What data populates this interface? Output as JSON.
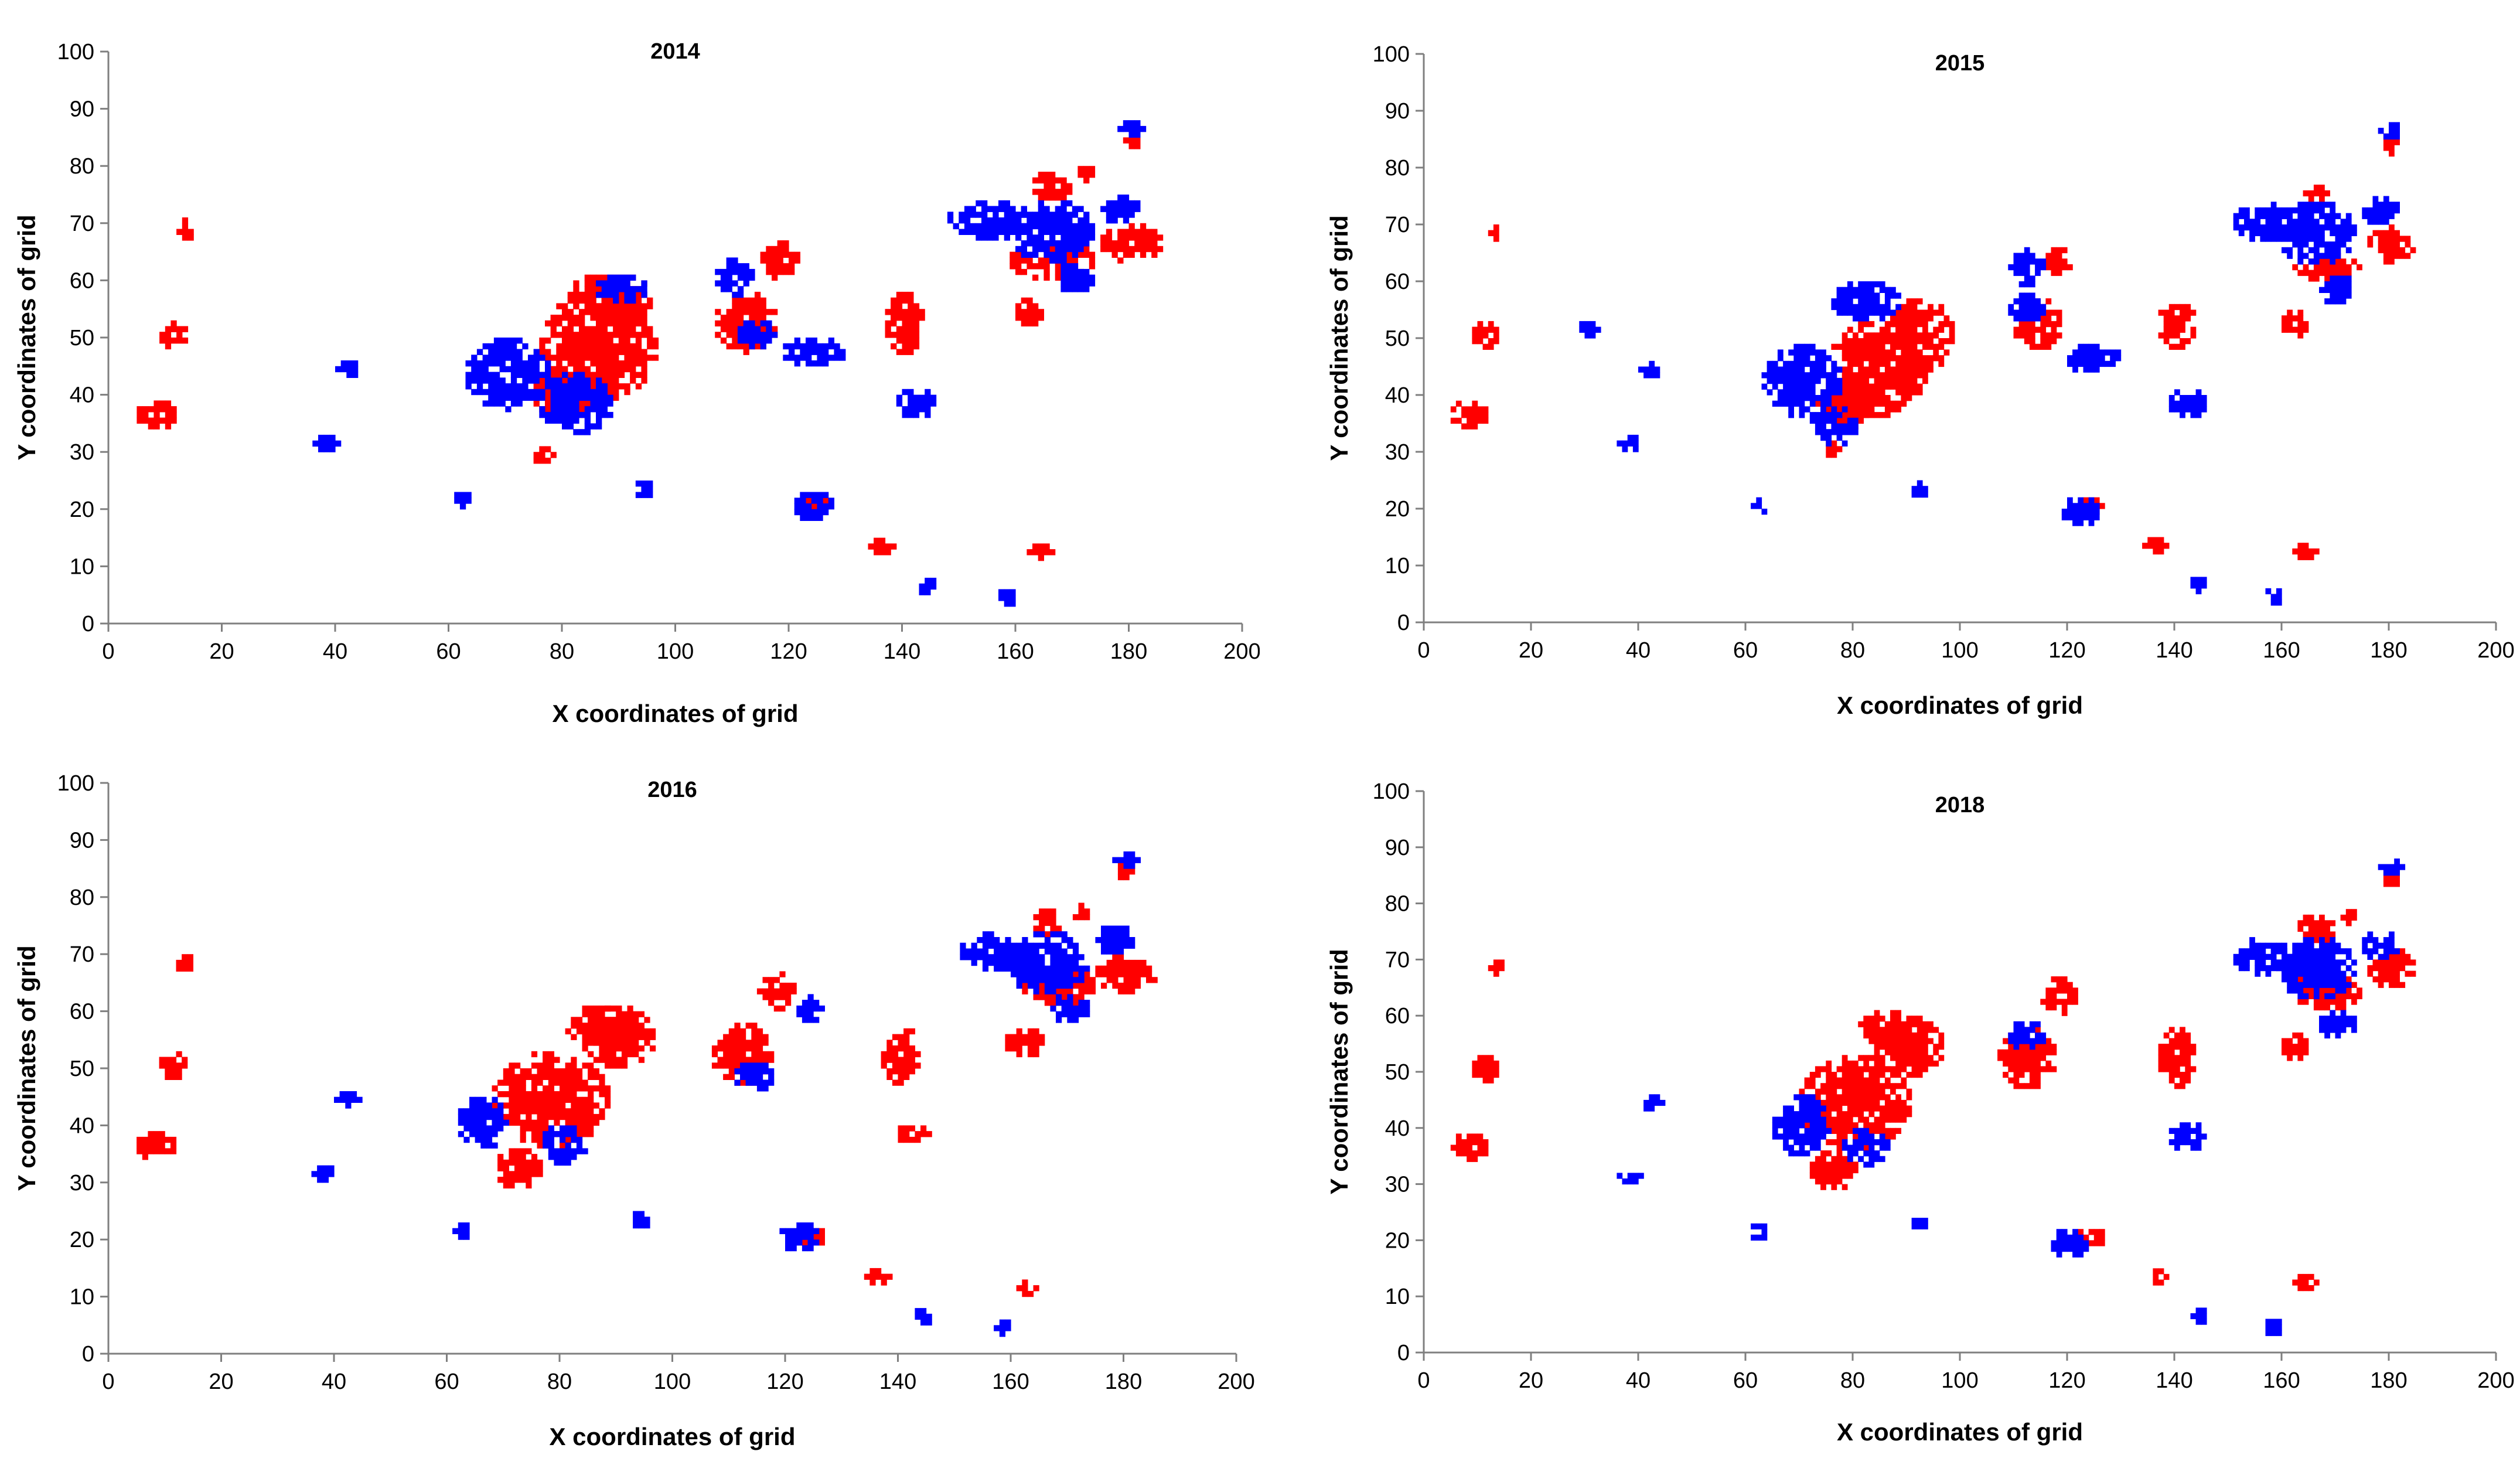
{
  "colors": {
    "red": "#ff0000",
    "blue": "#0000ff",
    "axis": "#7f7f7f"
  },
  "chart_data": [
    {
      "type": "scatter",
      "title": "2014",
      "xlabel": "X coordinates of grid",
      "ylabel": "Y coordinates of grid",
      "xlim": [
        0,
        200
      ],
      "ylim": [
        0,
        100
      ],
      "xticks": [
        0,
        20,
        40,
        60,
        80,
        100,
        120,
        140,
        160,
        180,
        200
      ],
      "yticks": [
        0,
        10,
        20,
        30,
        40,
        50,
        60,
        70,
        80,
        90,
        100
      ],
      "series": [
        {
          "name": "red",
          "clusters": [
            [
              86,
              48,
              10,
              9
            ],
            [
              80,
              40,
              5,
              5
            ],
            [
              90,
              56,
              5,
              4
            ],
            [
              8,
              36,
              3,
              2
            ],
            [
              13,
              68,
              1,
              2
            ],
            [
              11,
              50,
              2,
              2
            ],
            [
              112,
              52,
              5,
              5
            ],
            [
              118,
              63,
              3,
              3
            ],
            [
              140,
              52,
              3,
              5
            ],
            [
              162,
              54,
              2,
              2
            ],
            [
              166,
              63,
              7,
              3
            ],
            [
              180,
              66,
              5,
              3
            ],
            [
              180,
              84,
              1,
              2
            ],
            [
              86,
              57,
              5,
              3
            ],
            [
              76,
              29,
              2,
              1
            ],
            [
              124,
              21,
              2,
              1
            ],
            [
              136,
              13,
              2,
              1
            ],
            [
              164,
              12,
              2,
              1
            ],
            [
              166,
              76,
              3,
              2
            ],
            [
              172,
              78,
              1,
              1
            ]
          ]
        },
        {
          "name": "blue",
          "clusters": [
            [
              70,
              43,
              7,
              6
            ],
            [
              82,
              38,
              6,
              5
            ],
            [
              90,
              58,
              4,
              2
            ],
            [
              110,
              60,
              3,
              3
            ],
            [
              124,
              47,
              5,
              2
            ],
            [
              142,
              38,
              3,
              2
            ],
            [
              155,
              70,
              7,
              3
            ],
            [
              166,
              68,
              7,
              5
            ],
            [
              178,
              72,
              3,
              2
            ],
            [
              180,
              86,
              2,
              1
            ],
            [
              124,
              20,
              3,
              2
            ],
            [
              62,
              21,
              1,
              1
            ],
            [
              94,
              23,
              1,
              1
            ],
            [
              42,
              44,
              2,
              1
            ],
            [
              38,
              31,
              2,
              1
            ],
            [
              170,
              60,
              3,
              2
            ],
            [
              144,
              6,
              1,
              1
            ],
            [
              158,
              4,
              1,
              1
            ],
            [
              114,
              50,
              3,
              2
            ]
          ]
        }
      ]
    },
    {
      "type": "scatter",
      "title": "2015",
      "xlabel": "X coordinates of grid",
      "ylabel": "Y coordinates of grid",
      "xlim": [
        0,
        200
      ],
      "ylim": [
        0,
        100
      ],
      "xticks": [
        0,
        20,
        40,
        60,
        80,
        100,
        120,
        140,
        160,
        180,
        200
      ],
      "yticks": [
        0,
        10,
        20,
        30,
        40,
        50,
        60,
        70,
        80,
        90,
        100
      ],
      "series": [
        {
          "name": "red",
          "clusters": [
            [
              84,
              44,
              9,
              8
            ],
            [
              92,
              50,
              6,
              6
            ],
            [
              78,
              38,
              5,
              4
            ],
            [
              8,
              36,
              3,
              2
            ],
            [
              13,
              68,
              1,
              1
            ],
            [
              11,
              50,
              2,
              2
            ],
            [
              114,
              52,
              4,
              4
            ],
            [
              118,
              63,
              2,
              2
            ],
            [
              140,
              52,
              3,
              4
            ],
            [
              162,
              52,
              2,
              2
            ],
            [
              168,
              62,
              6,
              2
            ],
            [
              180,
              66,
              4,
              3
            ],
            [
              180,
              84,
              1,
              2
            ],
            [
              76,
              30,
              2,
              1
            ],
            [
              124,
              20,
              2,
              1
            ],
            [
              136,
              13,
              2,
              1
            ],
            [
              164,
              12,
              2,
              1
            ],
            [
              166,
              75,
              2,
              1
            ]
          ]
        },
        {
          "name": "blue",
          "clusters": [
            [
              70,
              42,
              7,
              6
            ],
            [
              82,
              56,
              6,
              3
            ],
            [
              76,
              34,
              4,
              3
            ],
            [
              112,
              62,
              3,
              3
            ],
            [
              124,
              46,
              5,
              2
            ],
            [
              142,
              38,
              3,
              2
            ],
            [
              156,
              70,
              5,
              3
            ],
            [
              166,
              68,
              7,
              5
            ],
            [
              178,
              72,
              3,
              2
            ],
            [
              180,
              86,
              2,
              1
            ],
            [
              122,
              19,
              3,
              2
            ],
            [
              62,
              20,
              1,
              1
            ],
            [
              92,
              23,
              1,
              1
            ],
            [
              42,
              44,
              2,
              1
            ],
            [
              38,
              31,
              2,
              1
            ],
            [
              170,
              58,
              3,
              2
            ],
            [
              144,
              6,
              1,
              1
            ],
            [
              158,
              4,
              1,
              1
            ],
            [
              112,
              55,
              3,
              2
            ],
            [
              30,
              51,
              2,
              1
            ]
          ]
        }
      ]
    },
    {
      "type": "scatter",
      "title": "2016",
      "xlabel": "X coordinates of grid",
      "ylabel": "Y coordinates of grid",
      "xlim": [
        0,
        200
      ],
      "ylim": [
        0,
        100
      ],
      "xticks": [
        0,
        20,
        40,
        60,
        80,
        100,
        120,
        140,
        160,
        180,
        200
      ],
      "yticks": [
        0,
        10,
        20,
        30,
        40,
        50,
        60,
        70,
        80,
        90,
        100
      ],
      "series": [
        {
          "name": "red",
          "clusters": [
            [
              78,
              44,
              10,
              8
            ],
            [
              90,
              55,
              6,
              5
            ],
            [
              72,
              32,
              4,
              3
            ],
            [
              8,
              36,
              3,
              2
            ],
            [
              13,
              68,
              1,
              1
            ],
            [
              11,
              50,
              2,
              2
            ],
            [
              112,
              52,
              5,
              5
            ],
            [
              118,
              63,
              3,
              3
            ],
            [
              140,
              52,
              3,
              5
            ],
            [
              162,
              54,
              3,
              2
            ],
            [
              168,
              64,
              6,
              3
            ],
            [
              180,
              66,
              5,
              3
            ],
            [
              180,
              84,
              1,
              2
            ],
            [
              86,
              57,
              5,
              3
            ],
            [
              124,
              20,
              3,
              1
            ],
            [
              136,
              13,
              2,
              1
            ],
            [
              162,
              11,
              2,
              1
            ],
            [
              166,
              75,
              2,
              2
            ],
            [
              172,
              77,
              1,
              1
            ],
            [
              142,
              38,
              3,
              1
            ]
          ]
        },
        {
          "name": "blue",
          "clusters": [
            [
              66,
              40,
              4,
              4
            ],
            [
              80,
              36,
              4,
              3
            ],
            [
              156,
              70,
              5,
              3
            ],
            [
              166,
              68,
              7,
              5
            ],
            [
              178,
              72,
              3,
              2
            ],
            [
              180,
              86,
              2,
              1
            ],
            [
              122,
              20,
              3,
              2
            ],
            [
              62,
              21,
              1,
              1
            ],
            [
              94,
              23,
              1,
              1
            ],
            [
              42,
              44,
              2,
              1
            ],
            [
              38,
              31,
              2,
              1
            ],
            [
              170,
              60,
              3,
              2
            ],
            [
              144,
              6,
              1,
              1
            ],
            [
              158,
              4,
              1,
              1
            ],
            [
              114,
              48,
              3,
              2
            ],
            [
              124,
              60,
              2,
              2
            ]
          ]
        }
      ]
    },
    {
      "type": "scatter",
      "title": "2018",
      "xlabel": "X coordinates of grid",
      "ylabel": "Y coordinates of grid",
      "xlim": [
        0,
        200
      ],
      "ylim": [
        0,
        100
      ],
      "xticks": [
        0,
        20,
        40,
        60,
        80,
        100,
        120,
        140,
        160,
        180,
        200
      ],
      "yticks": [
        0,
        10,
        20,
        30,
        40,
        50,
        60,
        70,
        80,
        90,
        100
      ],
      "series": [
        {
          "name": "red",
          "clusters": [
            [
              80,
              44,
              10,
              8
            ],
            [
              90,
              54,
              6,
              5
            ],
            [
              76,
              32,
              4,
              3
            ],
            [
              8,
              36,
              3,
              2
            ],
            [
              13,
              68,
              1,
              1
            ],
            [
              11,
              50,
              2,
              2
            ],
            [
              112,
              52,
              5,
              5
            ],
            [
              118,
              63,
              3,
              3
            ],
            [
              140,
              52,
              3,
              5
            ],
            [
              162,
              54,
              2,
              2
            ],
            [
              168,
              64,
              6,
              3
            ],
            [
              180,
              68,
              4,
              3
            ],
            [
              180,
              84,
              1,
              2
            ],
            [
              86,
              57,
              5,
              3
            ],
            [
              124,
              20,
              3,
              1
            ],
            [
              136,
              13,
              2,
              1
            ],
            [
              164,
              12,
              2,
              1
            ],
            [
              166,
              75,
              3,
              2
            ],
            [
              172,
              77,
              1,
              1
            ]
          ]
        },
        {
          "name": "blue",
          "clusters": [
            [
              70,
              40,
              5,
              5
            ],
            [
              82,
              36,
              4,
              3
            ],
            [
              156,
              70,
              5,
              3
            ],
            [
              166,
              68,
              7,
              5
            ],
            [
              178,
              72,
              3,
              2
            ],
            [
              180,
              86,
              2,
              1
            ],
            [
              120,
              19,
              3,
              2
            ],
            [
              62,
              21,
              1,
              1
            ],
            [
              92,
              23,
              1,
              1
            ],
            [
              42,
              44,
              2,
              1
            ],
            [
              38,
              31,
              2,
              1
            ],
            [
              170,
              58,
              3,
              2
            ],
            [
              144,
              6,
              1,
              1
            ],
            [
              158,
              4,
              1,
              1
            ],
            [
              112,
              56,
              3,
              2
            ],
            [
              142,
              38,
              3,
              2
            ]
          ]
        }
      ]
    }
  ]
}
